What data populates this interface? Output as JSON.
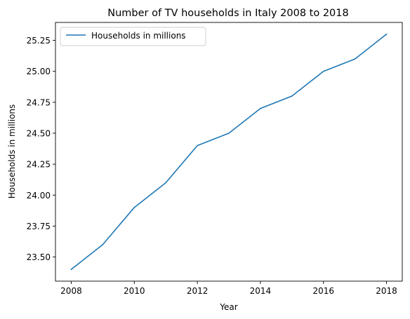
{
  "chart_data": {
    "type": "line",
    "title": "Number of TV households in Italy 2008 to 2018",
    "xlabel": "Year",
    "ylabel": "Households in millions",
    "x": [
      2008,
      2009,
      2010,
      2011,
      2012,
      2013,
      2014,
      2015,
      2016,
      2017,
      2018
    ],
    "series": [
      {
        "name": "Households in millions",
        "values": [
          23.4,
          23.6,
          23.9,
          24.1,
          24.4,
          24.5,
          24.7,
          24.8,
          25.0,
          25.1,
          25.3
        ],
        "color": "#1f77b4"
      }
    ],
    "xlim": [
      2007.5,
      2018.5
    ],
    "ylim": [
      23.305,
      25.395
    ],
    "xticks": [
      "2008",
      "2010",
      "2012",
      "2014",
      "2016",
      "2018"
    ],
    "yticks": [
      "23.50",
      "23.75",
      "24.00",
      "24.25",
      "24.50",
      "24.75",
      "25.00",
      "25.25"
    ],
    "grid": false,
    "legend_position": "top-left"
  }
}
